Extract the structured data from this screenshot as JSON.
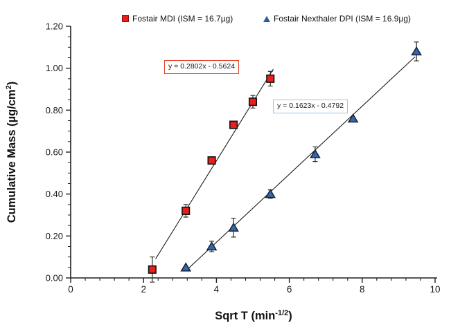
{
  "figure": {
    "background": "#ffffff"
  },
  "legend": {
    "entries": [
      {
        "label": "Fostair MDI (ISM = 16.7µg)",
        "marker": "square",
        "fill": "#e8201d",
        "border": "#8c0f0b"
      },
      {
        "label": "Fostair Nexthaler DPI (ISM = 16.9µg)",
        "marker": "triangle",
        "fill": "#2e5b97",
        "border": "#2e5b97"
      }
    ]
  },
  "chart_data": {
    "type": "scatter",
    "title": "",
    "xlabel": {
      "base": "Sqrt T (min",
      "sup": "-1/2",
      "close": ")"
    },
    "ylabel": {
      "base": "Cumulative Mass (µg/cm",
      "sup": "2",
      "close": ")"
    },
    "xlim": [
      0,
      10
    ],
    "ylim": [
      0,
      1.2
    ],
    "grid": false,
    "legend_position": "top",
    "x_ticks": {
      "values": [
        0,
        2,
        4,
        6,
        8,
        10
      ],
      "labels": [
        "0",
        "2",
        "4",
        "6",
        "8",
        "10"
      ],
      "minor_step": 0.4
    },
    "y_ticks": {
      "values": [
        0,
        0.2,
        0.4,
        0.6,
        0.8,
        1.0,
        1.2
      ],
      "labels": [
        "0.00",
        "0.20",
        "0.40",
        "0.60",
        "0.80",
        "1.00",
        "1.20"
      ],
      "minor_step": 0.05
    },
    "series": [
      {
        "name": "Fostair MDI (ISM = 16.7µg)",
        "marker": "square",
        "fill": "#e8201d",
        "stroke": "#111111",
        "x": [
          2.24,
          3.16,
          3.87,
          4.47,
          5.0,
          5.48
        ],
        "y": [
          0.04,
          0.32,
          0.56,
          0.73,
          0.84,
          0.95
        ],
        "yerr": [
          0.06,
          0.03,
          0,
          0,
          0.03,
          0.035
        ],
        "trendline": {
          "equation": "y = 0.2802x - 0.5624",
          "slope": 0.2802,
          "intercept": -0.5624,
          "x_start": 2.33,
          "x_end": 5.56,
          "box_border": "#e8432d"
        }
      },
      {
        "name": "Fostair Nexthaler DPI (ISM = 16.9µg)",
        "marker": "triangle",
        "fill": "#3766a7",
        "stroke": "#14213a",
        "x": [
          3.16,
          3.87,
          4.47,
          5.48,
          6.71,
          7.75,
          9.49
        ],
        "y": [
          0.05,
          0.15,
          0.24,
          0.4,
          0.59,
          0.76,
          1.08
        ],
        "yerr": [
          0,
          0.025,
          0.045,
          0.02,
          0.035,
          0,
          0.045
        ],
        "trendline": {
          "equation": "y = 0.1623x - 0.4792",
          "slope": 0.1623,
          "intercept": -0.4792,
          "x_start": 3.2,
          "x_end": 9.45,
          "box_border": "#9cc2e5"
        }
      }
    ]
  }
}
